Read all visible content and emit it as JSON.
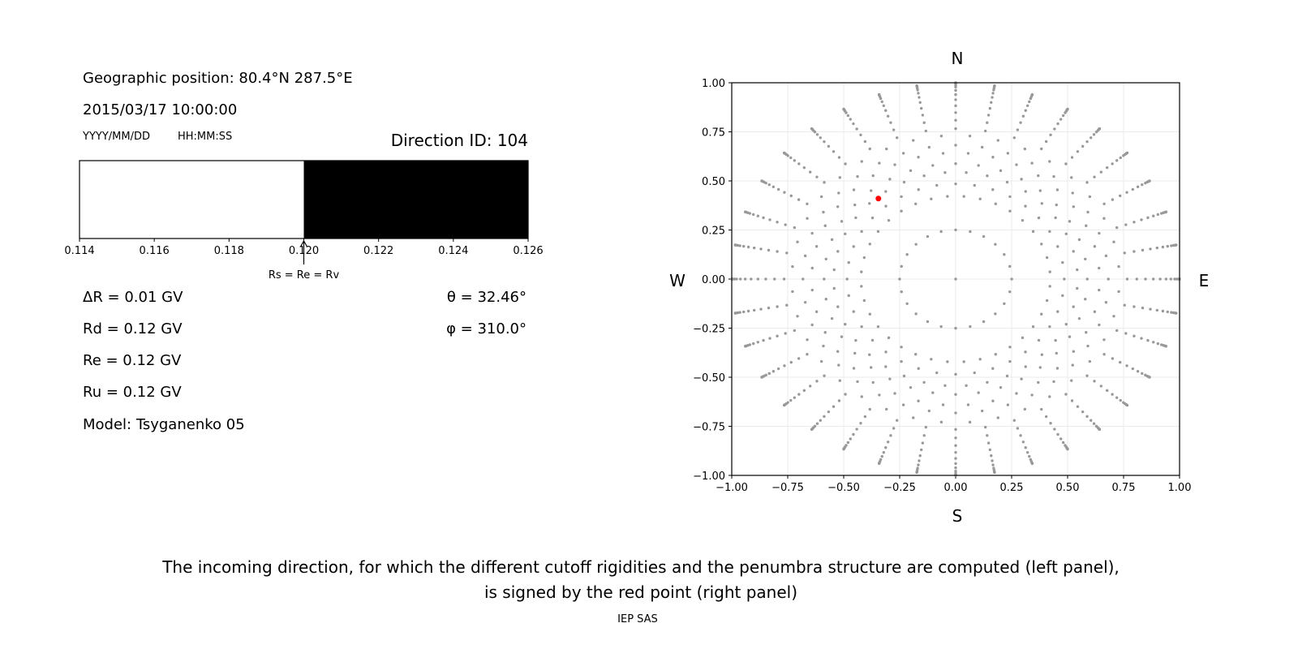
{
  "left_panel": {
    "geo_position": "Geographic position: 80.4°N 287.5°E",
    "datetime": "2015/03/17 10:00:00",
    "date_format": "YYYY/MM/DD",
    "time_format": "HH:MM:SS",
    "direction_id": "Direction ID: 104",
    "delta_r": "ΔR = 0.01 GV",
    "rd": "Rd = 0.12 GV",
    "re": "Re = 0.12 GV",
    "ru": "Ru = 0.12 GV",
    "model": "Model: Tsyganenko 05",
    "theta": "θ = 32.46°",
    "phi": "φ = 310.0°"
  },
  "caption": {
    "line1": "The incoming direction, for which the different cutoff rigidities and the penumbra structure are computed (left panel),",
    "line2": "is signed by the red point (right panel)",
    "footer": "IEP SAS"
  },
  "chart_data": [
    {
      "type": "bar",
      "title": "",
      "xlim": [
        0.114,
        0.126
      ],
      "xticks": [
        "0.114",
        "0.116",
        "0.118",
        "0.120",
        "0.122",
        "0.124",
        "0.126"
      ],
      "segments": [
        {
          "from": 0.114,
          "to": 0.12,
          "color": "#ffffff"
        },
        {
          "from": 0.12,
          "to": 0.126,
          "color": "#000000"
        }
      ],
      "annotation": {
        "text": "Rs = Re = Rv",
        "x": 0.12
      }
    },
    {
      "type": "scatter",
      "xlim": [
        -1,
        1
      ],
      "ylim": [
        -1,
        1
      ],
      "grid": true,
      "xticks": [
        "−1.00",
        "−0.75",
        "−0.50",
        "−0.25",
        "0.00",
        "0.25",
        "0.50",
        "0.75",
        "1.00"
      ],
      "yticks": [
        "1.00",
        "0.75",
        "0.50",
        "0.25",
        "0.00",
        "−0.25",
        "−0.50",
        "−0.75",
        "−1.00"
      ],
      "compass": {
        "north": "N",
        "south": "S",
        "east": "E",
        "west": "W"
      },
      "grid_point_color": "#999999",
      "grid_directions": [
        {
          "zenith_deg": 0,
          "azimuth_step_deg": 360,
          "azimuth_offset_deg": 0
        },
        {
          "zenith_deg": 14.5,
          "azimuth_step_deg": 15,
          "azimuth_offset_deg": 0
        },
        {
          "zenith_deg": 25,
          "azimuth_step_deg": 10,
          "azimuth_offset_deg": 5
        },
        {
          "zenith_deg": 29,
          "azimuth_step_deg": 10,
          "azimuth_offset_deg": 0
        },
        {
          "zenith_deg": 33,
          "azimuth_step_deg": 10,
          "azimuth_offset_deg": 5
        },
        {
          "zenith_deg": 36,
          "azimuth_step_deg": 10,
          "azimuth_offset_deg": 0
        },
        {
          "zenith_deg": 40,
          "azimuth_step_deg": 10,
          "azimuth_offset_deg": 5
        },
        {
          "zenith_deg": 43,
          "azimuth_step_deg": 10,
          "azimuth_offset_deg": 0
        },
        {
          "zenith_deg": 47,
          "azimuth_step_deg": 10,
          "azimuth_offset_deg": 5
        },
        {
          "zenith_deg": 50,
          "azimuth_step_deg": 10,
          "azimuth_offset_deg": 0
        },
        {
          "zenith_deg": 54,
          "azimuth_step_deg": 10,
          "azimuth_offset_deg": 0
        },
        {
          "zenith_deg": 58,
          "azimuth_step_deg": 10,
          "azimuth_offset_deg": 0
        },
        {
          "zenith_deg": 62,
          "azimuth_step_deg": 10,
          "azimuth_offset_deg": 0
        },
        {
          "zenith_deg": 66,
          "azimuth_step_deg": 10,
          "azimuth_offset_deg": 0
        },
        {
          "zenith_deg": 70,
          "azimuth_step_deg": 10,
          "azimuth_offset_deg": 0
        },
        {
          "zenith_deg": 74,
          "azimuth_step_deg": 10,
          "azimuth_offset_deg": 0
        },
        {
          "zenith_deg": 78,
          "azimuth_step_deg": 10,
          "azimuth_offset_deg": 0
        },
        {
          "zenith_deg": 81,
          "azimuth_step_deg": 10,
          "azimuth_offset_deg": 0
        },
        {
          "zenith_deg": 84,
          "azimuth_step_deg": 10,
          "azimuth_offset_deg": 0
        },
        {
          "zenith_deg": 86,
          "azimuth_step_deg": 10,
          "azimuth_offset_deg": 0
        },
        {
          "zenith_deg": 88,
          "azimuth_step_deg": 10,
          "azimuth_offset_deg": 0
        },
        {
          "zenith_deg": 90,
          "azimuth_step_deg": 10,
          "azimuth_offset_deg": 0
        }
      ],
      "highlight": {
        "x": -0.345,
        "y": 0.41,
        "color": "#ff0000"
      }
    }
  ]
}
